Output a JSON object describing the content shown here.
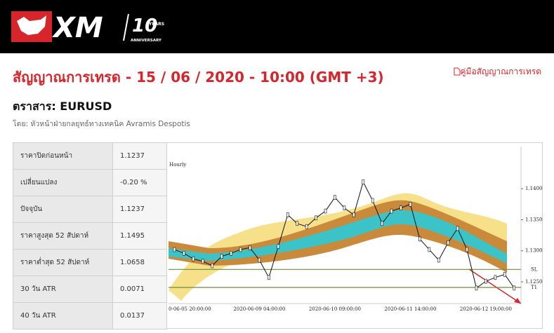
{
  "header": {
    "logo_text": "XM",
    "badge_number": "10",
    "badge_top": "YEARS",
    "badge_bottom": "ANNIVERSARY"
  },
  "page": {
    "title": "สัญญาณการเทรด - 15 / 06 / 2020 - 10:00 (GMT +3)",
    "guide_link": "คู่มือสัญญาณการเทรด",
    "instrument": "ตราสาร: EURUSD",
    "author": "โดย: หัวหน้าฝ่ายกลยุทธ์ทางเทคนิค Avramis Despotis"
  },
  "table": {
    "rows": [
      [
        "ราคาปิดก่อนหน้า",
        "1.1237"
      ],
      [
        "เปลี่ยนแปลง",
        "-0.20 %"
      ],
      [
        "ปัจจุบัน",
        "1.1237"
      ],
      [
        "ราคาสูงสุด 52 สัปดาห์",
        "1.1495"
      ],
      [
        "ราคาต่ำสุด 52 สัปดาห์",
        "1.0658"
      ],
      [
        "30 วัน ATR",
        "0.0071"
      ],
      [
        "40 วัน ATR",
        "0.0137"
      ]
    ]
  },
  "chart_data": {
    "type": "line",
    "title": "Hourly",
    "color": "#111111",
    "categories": [
      null,
      "0-06-05 20:00:00",
      null,
      null,
      null,
      null,
      null,
      null,
      null,
      "2020-06-09 04:00:00",
      null,
      null,
      null,
      null,
      null,
      null,
      null,
      "2020-06-10 09:00:00",
      null,
      null,
      null,
      null,
      null,
      null,
      null,
      "2020-06-11 14:00:00",
      null,
      null,
      null,
      null,
      null,
      null,
      null,
      "2020-06-12 19:00:00",
      null,
      null,
      null
    ],
    "values": [
      1.1302,
      1.1296,
      1.1287,
      1.1283,
      1.1276,
      1.1291,
      1.1296,
      1.1302,
      1.1305,
      1.1285,
      1.1257,
      1.1307,
      1.1358,
      1.1344,
      1.1339,
      1.1353,
      1.1364,
      1.1386,
      1.1369,
      1.1358,
      1.1411,
      1.1381,
      1.1344,
      1.1364,
      1.1369,
      1.1375,
      1.1319,
      1.1302,
      1.1285,
      1.1313,
      1.1336,
      1.1302,
      1.124,
      1.1251,
      1.1257,
      1.1262,
      1.124
    ],
    "ylim": [
      1.1215,
      1.1468
    ],
    "yticks": [
      {
        "value": 1.125,
        "label": "1.1250"
      },
      {
        "value": 1.13,
        "label": "1.1300"
      },
      {
        "value": 1.135,
        "label": "1.1350"
      },
      {
        "value": 1.14,
        "label": "1.1400"
      }
    ],
    "levels": [
      {
        "value": 1.127,
        "label": "SL",
        "color": "#6b8e3a"
      },
      {
        "value": 1.1241,
        "label": "T1",
        "color": "#6b8e3a"
      }
    ]
  }
}
